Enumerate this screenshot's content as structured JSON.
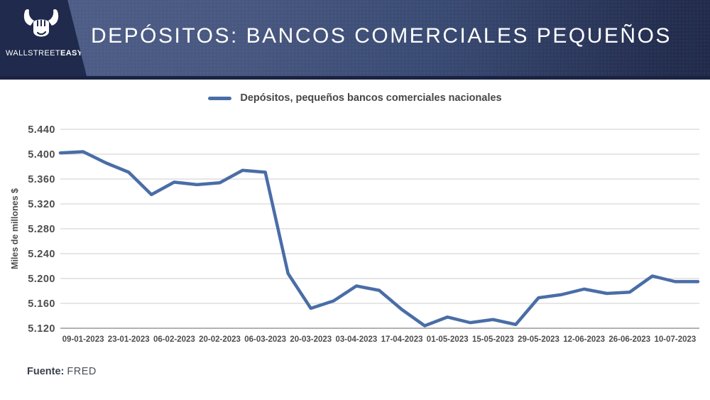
{
  "header": {
    "brand": {
      "part1": "WALLSTREET",
      "part2": "EASY"
    },
    "title": "DEPÓSITOS: BANCOS COMERCIALES PEQUEÑOS"
  },
  "legend": {
    "label": "Depósitos, pequeños bancos comerciales nacionales"
  },
  "footer": {
    "source_label": "Fuente:",
    "source_value": "FRED"
  },
  "colors": {
    "line": "#4a6da7",
    "grid": "#cccccc",
    "axis": "#999999",
    "tick_text": "#4d4d4d",
    "header_navy": "#1f2a4c",
    "header_slate": "#47577f"
  },
  "chart_data": {
    "type": "line",
    "title": "Depósitos, pequeños bancos comerciales nacionales",
    "ylabel": "Miles de millones $",
    "xlabel": "",
    "grid": true,
    "legend_position": "top",
    "ylim": [
      5120,
      5440
    ],
    "y_ticks": [
      5440,
      5400,
      5360,
      5320,
      5280,
      5240,
      5200,
      5160,
      5120
    ],
    "y_tick_labels": [
      "5.440",
      "5.400",
      "5.360",
      "5.320",
      "5.280",
      "5.240",
      "5.200",
      "5.160",
      "5.120"
    ],
    "x": [
      "02-01-2023",
      "09-01-2023",
      "16-01-2023",
      "23-01-2023",
      "30-01-2023",
      "06-02-2023",
      "13-02-2023",
      "20-02-2023",
      "27-02-2023",
      "06-03-2023",
      "13-03-2023",
      "20-03-2023",
      "27-03-2023",
      "03-04-2023",
      "10-04-2023",
      "17-04-2023",
      "24-04-2023",
      "01-05-2023",
      "08-05-2023",
      "15-05-2023",
      "22-05-2023",
      "29-05-2023",
      "05-06-2023",
      "12-06-2023",
      "19-06-2023",
      "26-06-2023",
      "03-07-2023",
      "10-07-2023",
      "17-07-2023"
    ],
    "x_tick_shown_indices": [
      1,
      3,
      5,
      7,
      9,
      11,
      13,
      15,
      17,
      19,
      21,
      23,
      25,
      27
    ],
    "x_tick_labels": [
      "09-01-2023",
      "23-01-2023",
      "06-02-2023",
      "20-02-2023",
      "06-03-2023",
      "20-03-2023",
      "03-04-2023",
      "17-04-2023",
      "01-05-2023",
      "15-05-2023",
      "29-05-2023",
      "12-06-2023",
      "26-06-2023",
      "10-07-2023"
    ],
    "series": [
      {
        "name": "Depósitos, pequeños bancos comerciales nacionales",
        "values": [
          5402,
          5404,
          5386,
          5371,
          5335,
          5355,
          5351,
          5354,
          5374,
          5371,
          5208,
          5152,
          5164,
          5188,
          5181,
          5150,
          5124,
          5138,
          5129,
          5134,
          5126,
          5169,
          5174,
          5183,
          5176,
          5178,
          5204,
          5195,
          5195
        ]
      }
    ]
  }
}
